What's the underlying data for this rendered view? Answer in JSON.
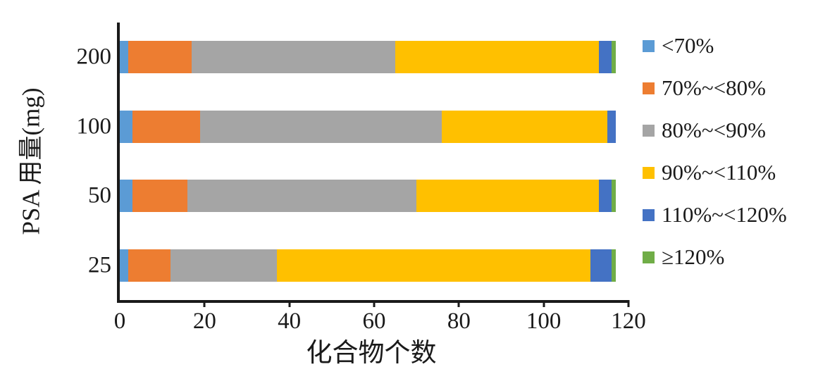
{
  "chart_data": {
    "type": "bar",
    "orientation": "horizontal-stacked",
    "title": "",
    "xlabel": "化合物个数",
    "ylabel": "PSA 用量(mg)",
    "xlim": [
      0,
      120
    ],
    "xticks": [
      0,
      20,
      40,
      60,
      80,
      100,
      120
    ],
    "grid": false,
    "legend_position": "right",
    "categories": [
      "200",
      "100",
      "50",
      "25"
    ],
    "series": [
      {
        "name": "<70%",
        "color": "#5B9BD5",
        "values": [
          2,
          3,
          3,
          2
        ]
      },
      {
        "name": "70%~<80%",
        "color": "#ED7D31",
        "values": [
          15,
          16,
          13,
          10
        ]
      },
      {
        "name": "80%~<90%",
        "color": "#A5A5A5",
        "values": [
          48,
          57,
          54,
          25
        ]
      },
      {
        "name": "90%~<110%",
        "color": "#FFC000",
        "values": [
          48,
          39,
          43,
          74
        ]
      },
      {
        "name": "110%~<120%",
        "color": "#4472C4",
        "values": [
          3,
          2,
          3,
          5
        ]
      },
      {
        "name": "≥120%",
        "color": "#70AD47",
        "values": [
          1,
          0,
          1,
          1
        ]
      }
    ],
    "totals_per_category": [
      117,
      117,
      117,
      117
    ],
    "axis_color": "#1a1a1a"
  }
}
